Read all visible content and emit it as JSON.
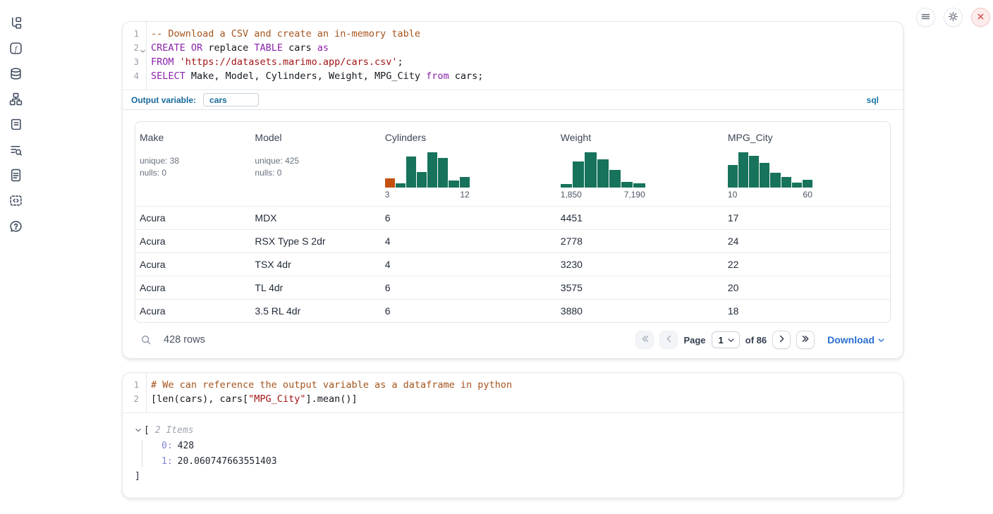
{
  "topbar": {
    "buttons": [
      {
        "icon": "menu"
      },
      {
        "icon": "gear"
      },
      {
        "icon": "close"
      }
    ]
  },
  "sidebar": {
    "items": [
      {
        "icon": "file-tree"
      },
      {
        "icon": "function"
      },
      {
        "icon": "database"
      },
      {
        "icon": "graph"
      },
      {
        "icon": "scroll"
      },
      {
        "icon": "log-search"
      },
      {
        "icon": "document"
      },
      {
        "icon": "snippet"
      },
      {
        "icon": "help"
      }
    ]
  },
  "cells": [
    {
      "language_badge": "sql",
      "output_variable_label": "Output variable:",
      "output_variable_value": "cars",
      "lines": [
        {
          "num": "1",
          "fold": false,
          "tokens": [
            [
              "comment",
              "-- Download a CSV and create an in-memory table"
            ]
          ]
        },
        {
          "num": "2",
          "fold": true,
          "tokens": [
            [
              "kw",
              "CREATE"
            ],
            [
              "plain",
              " "
            ],
            [
              "kw",
              "OR"
            ],
            [
              "plain",
              " replace "
            ],
            [
              "kw",
              "TABLE"
            ],
            [
              "plain",
              " cars "
            ],
            [
              "kw",
              "as"
            ]
          ]
        },
        {
          "num": "3",
          "fold": false,
          "tokens": [
            [
              "kw",
              "FROM"
            ],
            [
              "plain",
              " "
            ],
            [
              "str",
              "'https://datasets.marimo.app/cars.csv'"
            ],
            [
              "plain",
              ";"
            ]
          ]
        },
        {
          "num": "4",
          "fold": false,
          "tokens": [
            [
              "kw",
              "SELECT"
            ],
            [
              "plain",
              " Make, Model, Cylinders, Weight, MPG_City "
            ],
            [
              "kw",
              "from"
            ],
            [
              "plain",
              " cars;"
            ]
          ]
        }
      ]
    },
    {
      "lines": [
        {
          "num": "1",
          "fold": false,
          "tokens": [
            [
              "comment",
              "# We can reference the output variable as a dataframe in python"
            ]
          ]
        },
        {
          "num": "2",
          "fold": false,
          "tokens": [
            [
              "plain",
              "[len(cars), cars["
            ],
            [
              "str",
              "\"MPG_City\""
            ],
            [
              "plain",
              "].mean()]"
            ]
          ]
        }
      ]
    }
  ],
  "table": {
    "columns": [
      {
        "name": "Make",
        "stats": [
          "unique: 38",
          "nulls: 0"
        ]
      },
      {
        "name": "Model",
        "stats": [
          "unique: 425",
          "nulls: 0"
        ]
      },
      {
        "name": "Cylinders",
        "histogram": {
          "min_label": "3",
          "max_label": "12",
          "bars": [
            {
              "h": 0.26,
              "c": "orange"
            },
            {
              "h": 0.12
            },
            {
              "h": 0.88
            },
            {
              "h": 0.44
            },
            {
              "h": 1.0
            },
            {
              "h": 0.84
            },
            {
              "h": 0.2
            },
            {
              "h": 0.3
            }
          ]
        }
      },
      {
        "name": "Weight",
        "histogram": {
          "min_label": "1,850",
          "max_label": "7,190",
          "bars": [
            {
              "h": 0.1
            },
            {
              "h": 0.74
            },
            {
              "h": 1.0
            },
            {
              "h": 0.8
            },
            {
              "h": 0.5
            },
            {
              "h": 0.16
            },
            {
              "h": 0.12
            }
          ]
        }
      },
      {
        "name": "MPG_City",
        "histogram": {
          "min_label": "10",
          "max_label": "60",
          "bars": [
            {
              "h": 0.64
            },
            {
              "h": 1.0
            },
            {
              "h": 0.9
            },
            {
              "h": 0.7
            },
            {
              "h": 0.42
            },
            {
              "h": 0.31
            },
            {
              "h": 0.14
            },
            {
              "h": 0.22
            }
          ]
        }
      }
    ],
    "rows": [
      [
        "Acura",
        "MDX",
        "6",
        "4451",
        "17"
      ],
      [
        "Acura",
        "RSX Type S 2dr",
        "4",
        "2778",
        "24"
      ],
      [
        "Acura",
        "TSX 4dr",
        "4",
        "3230",
        "22"
      ],
      [
        "Acura",
        "TL 4dr",
        "6",
        "3575",
        "20"
      ],
      [
        "Acura",
        "3.5 RL 4dr",
        "6",
        "3880",
        "18"
      ]
    ],
    "footer": {
      "row_count": "428 rows",
      "page_label": "Page",
      "page_value": "1",
      "of_label": "of 86",
      "download_label": "Download"
    }
  },
  "python_output": {
    "open": "[",
    "items_label": "2 Items",
    "entries": [
      {
        "key": "0:",
        "value": "428"
      },
      {
        "key": "1:",
        "value": "20.060747663551403"
      }
    ],
    "close": "]"
  },
  "colors": {
    "green": "#17735b",
    "orange": "#c4510f",
    "keyword": "#8b24a8",
    "comment": "#a5541c",
    "string": "#a31414",
    "label_blue": "#176a9c",
    "link_blue": "#2a6fd2",
    "danger": "#d84545"
  }
}
